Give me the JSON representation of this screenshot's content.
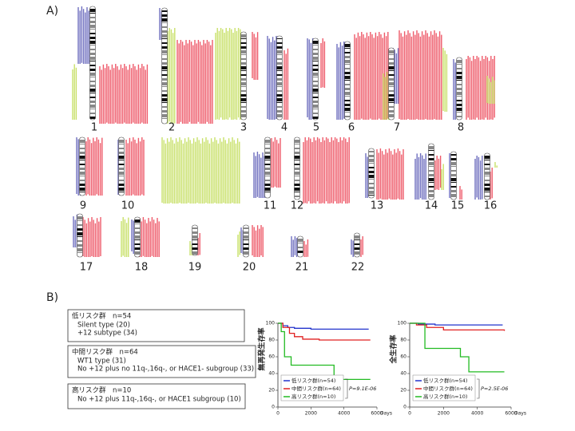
{
  "panel_a": {
    "label": "A)",
    "chromosomes": [
      "1",
      "2",
      "3",
      "4",
      "5",
      "6",
      "7",
      "8",
      "9",
      "10",
      "11",
      "12",
      "13",
      "14",
      "15",
      "16",
      "17",
      "18",
      "19",
      "20",
      "21",
      "22"
    ]
  },
  "panel_b": {
    "label": "B)",
    "risk_groups": [
      {
        "title": "低リスク群　n=54",
        "lines": [
          "Silent type (20)",
          "+12 subtype (34)"
        ]
      },
      {
        "title": "中間リスク群　n=64",
        "lines": [
          "WT1 type (31)",
          "No +12 plus no 11q-,16q-, or HACE1- subgroup (33)"
        ]
      },
      {
        "title": "高リスク群　n=10",
        "lines": [
          "No +12 plus 11q-,16q-, or HACE1 subgroup (10)"
        ]
      }
    ]
  },
  "chart_data": [
    {
      "type": "line",
      "y_label": "無再発生存率",
      "x_label": "Days",
      "annotation": "P=9.1E-06",
      "xlim": [
        0,
        6000
      ],
      "xticks": [
        0,
        2000,
        4000,
        6000
      ],
      "ylim": [
        0,
        100
      ],
      "yticks": [
        0,
        20,
        40,
        60,
        80,
        100
      ],
      "series": [
        {
          "name": "低リスク群(n=54)",
          "color": "#2233cc",
          "x": [
            0,
            300,
            600,
            1000,
            2000,
            5500
          ],
          "values": [
            100,
            97,
            95,
            94,
            93,
            93
          ]
        },
        {
          "name": "中間リスク群(n=64)",
          "color": "#e02020",
          "x": [
            0,
            300,
            700,
            1000,
            1500,
            2500,
            5600
          ],
          "values": [
            100,
            95,
            88,
            84,
            81,
            80,
            80
          ]
        },
        {
          "name": "高リスク群(n=10)",
          "color": "#22bb22",
          "x": [
            0,
            200,
            400,
            800,
            3400,
            5600
          ],
          "values": [
            100,
            90,
            60,
            50,
            33,
            33
          ]
        }
      ]
    },
    {
      "type": "line",
      "y_label": "全生存率",
      "x_label": "Days",
      "annotation": "P=2.5E-06",
      "xlim": [
        0,
        6000
      ],
      "xticks": [
        0,
        2000,
        4000,
        6000
      ],
      "ylim": [
        0,
        100
      ],
      "yticks": [
        0,
        20,
        40,
        60,
        80,
        100
      ],
      "series": [
        {
          "name": "低リスク群(n=54)",
          "color": "#2233cc",
          "x": [
            0,
            500,
            1500,
            3000,
            5500
          ],
          "values": [
            100,
            99,
            98,
            98,
            98
          ]
        },
        {
          "name": "中間リスク群(n=64)",
          "color": "#e02020",
          "x": [
            0,
            400,
            1000,
            2000,
            5600
          ],
          "values": [
            100,
            98,
            95,
            92,
            91
          ]
        },
        {
          "name": "高リスク群(n=10)",
          "color": "#22bb22",
          "x": [
            0,
            900,
            3000,
            3500,
            5600
          ],
          "values": [
            100,
            70,
            60,
            42,
            42
          ]
        }
      ]
    }
  ]
}
